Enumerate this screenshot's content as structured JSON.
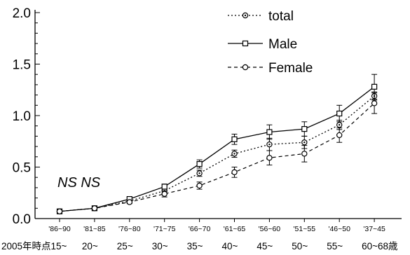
{
  "chart_data": {
    "type": "line",
    "categories": [
      "'86~90",
      "'81~85",
      "'76~80",
      "'71~75",
      "'66~70",
      "'61~65",
      "'56~60",
      "'51~55",
      "'46~50",
      "'37~45"
    ],
    "age_labels": [
      "2005年時点15~",
      "20~",
      "25~",
      "30~",
      "35~",
      "40~",
      "45~",
      "50~",
      "55~",
      "60~68歳"
    ],
    "ylim": [
      0,
      2.0
    ],
    "yticks": [
      "0.0",
      "0.5",
      "1.0",
      "1.5",
      "2.0"
    ],
    "annotation": "NS NS",
    "legend_position": "top-right",
    "series": [
      {
        "name": "total",
        "style": "dotted",
        "marker": "circle-dot",
        "values": [
          0.07,
          0.1,
          0.17,
          0.27,
          0.44,
          0.63,
          0.72,
          0.74,
          0.91,
          1.19
        ],
        "err": [
          0,
          0,
          0.015,
          0.02,
          0.03,
          0.035,
          0.06,
          0.06,
          0.045,
          0.04
        ]
      },
      {
        "name": "Male",
        "style": "solid",
        "marker": "square",
        "values": [
          0.07,
          0.1,
          0.19,
          0.31,
          0.53,
          0.77,
          0.84,
          0.87,
          1.02,
          1.28
        ],
        "err": [
          0,
          0,
          0.015,
          0.025,
          0.04,
          0.05,
          0.07,
          0.07,
          0.08,
          0.12
        ]
      },
      {
        "name": "Female",
        "style": "dashed",
        "marker": "circle",
        "values": [
          0.07,
          0.1,
          0.16,
          0.24,
          0.32,
          0.45,
          0.59,
          0.63,
          0.81,
          1.12
        ],
        "err": [
          0,
          0,
          0.015,
          0.03,
          0.035,
          0.05,
          0.07,
          0.08,
          0.07,
          0.1
        ]
      }
    ]
  }
}
